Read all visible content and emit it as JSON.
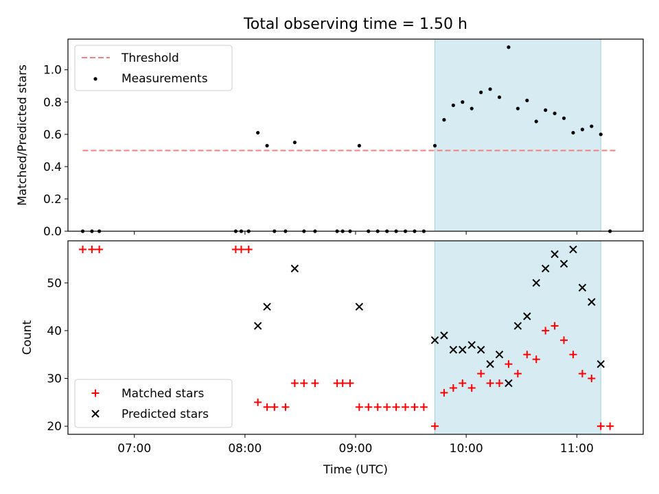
{
  "chart_data": [
    {
      "type": "scatter",
      "title": "Total observing time = 1.50 h",
      "ylabel": "Matched/Predicted stars",
      "xlim": [
        "06:24",
        "11:36"
      ],
      "ylim": [
        0,
        1.19
      ],
      "yticks": [
        0.0,
        0.2,
        0.4,
        0.6,
        0.8,
        1.0
      ],
      "ytick_labels": [
        "0.0",
        "0.2",
        "0.4",
        "0.6",
        "0.8",
        "1.0"
      ],
      "grid": false,
      "legend_position": "top-left",
      "highlight_span": {
        "x": [
          "09:43",
          "11:13"
        ],
        "color": "#add8e6"
      },
      "threshold": {
        "name": "Threshold",
        "value": 0.5,
        "x": [
          "06:32",
          "11:21"
        ],
        "color": "#f47f7f",
        "style": "dashed"
      },
      "series": [
        {
          "name": "Measurements",
          "marker": "dot",
          "color": "#000000",
          "points": [
            [
              "06:32",
              0.0
            ],
            [
              "06:37",
              0.0
            ],
            [
              "06:41",
              0.0
            ],
            [
              "07:55",
              0.0
            ],
            [
              "07:58",
              0.0
            ],
            [
              "08:02",
              0.0
            ],
            [
              "08:07",
              0.61
            ],
            [
              "08:12",
              0.53
            ],
            [
              "08:16",
              0.0
            ],
            [
              "08:22",
              0.0
            ],
            [
              "08:27",
              0.55
            ],
            [
              "08:32",
              0.0
            ],
            [
              "08:38",
              0.0
            ],
            [
              "08:50",
              0.0
            ],
            [
              "08:53",
              0.0
            ],
            [
              "08:57",
              0.0
            ],
            [
              "09:02",
              0.53
            ],
            [
              "09:07",
              0.0
            ],
            [
              "09:12",
              0.0
            ],
            [
              "09:17",
              0.0
            ],
            [
              "09:22",
              0.0
            ],
            [
              "09:27",
              0.0
            ],
            [
              "09:32",
              0.0
            ],
            [
              "09:37",
              0.0
            ],
            [
              "09:43",
              0.53
            ],
            [
              "09:48",
              0.69
            ],
            [
              "09:53",
              0.78
            ],
            [
              "09:58",
              0.8
            ],
            [
              "10:03",
              0.76
            ],
            [
              "10:08",
              0.86
            ],
            [
              "10:13",
              0.88
            ],
            [
              "10:18",
              0.83
            ],
            [
              "10:23",
              1.14
            ],
            [
              "10:28",
              0.76
            ],
            [
              "10:33",
              0.81
            ],
            [
              "10:38",
              0.68
            ],
            [
              "10:43",
              0.75
            ],
            [
              "10:48",
              0.73
            ],
            [
              "10:53",
              0.7
            ],
            [
              "10:58",
              0.61
            ],
            [
              "11:03",
              0.63
            ],
            [
              "11:08",
              0.65
            ],
            [
              "11:13",
              0.6
            ],
            [
              "11:18",
              0.0
            ]
          ]
        }
      ]
    },
    {
      "type": "scatter",
      "xlabel": "Time (UTC)",
      "ylabel": "Count",
      "xlim": [
        "06:24",
        "11:36"
      ],
      "ylim": [
        18.3,
        58.8
      ],
      "yticks": [
        20,
        30,
        40,
        50
      ],
      "ytick_labels": [
        "20",
        "30",
        "40",
        "50"
      ],
      "xticks": [
        "07:00",
        "08:00",
        "09:00",
        "10:00",
        "11:00"
      ],
      "grid": false,
      "legend_position": "bottom-left",
      "highlight_span": {
        "x": [
          "09:43",
          "11:13"
        ],
        "color": "#add8e6"
      },
      "series": [
        {
          "name": "Matched stars",
          "marker": "plus",
          "color": "#ff0000",
          "points": [
            [
              "06:32",
              57
            ],
            [
              "06:37",
              57
            ],
            [
              "06:41",
              57
            ],
            [
              "07:55",
              57
            ],
            [
              "07:58",
              57
            ],
            [
              "08:02",
              57
            ],
            [
              "08:07",
              25
            ],
            [
              "08:12",
              24
            ],
            [
              "08:16",
              24
            ],
            [
              "08:22",
              24
            ],
            [
              "08:27",
              29
            ],
            [
              "08:32",
              29
            ],
            [
              "08:38",
              29
            ],
            [
              "08:50",
              29
            ],
            [
              "08:53",
              29
            ],
            [
              "08:57",
              29
            ],
            [
              "09:02",
              24
            ],
            [
              "09:07",
              24
            ],
            [
              "09:12",
              24
            ],
            [
              "09:17",
              24
            ],
            [
              "09:22",
              24
            ],
            [
              "09:27",
              24
            ],
            [
              "09:32",
              24
            ],
            [
              "09:37",
              24
            ],
            [
              "09:43",
              20
            ],
            [
              "09:48",
              27
            ],
            [
              "09:53",
              28
            ],
            [
              "09:58",
              29
            ],
            [
              "10:03",
              28
            ],
            [
              "10:08",
              31
            ],
            [
              "10:13",
              29
            ],
            [
              "10:18",
              29
            ],
            [
              "10:23",
              33
            ],
            [
              "10:28",
              31
            ],
            [
              "10:33",
              35
            ],
            [
              "10:38",
              34
            ],
            [
              "10:43",
              40
            ],
            [
              "10:48",
              41
            ],
            [
              "10:53",
              38
            ],
            [
              "10:58",
              35
            ],
            [
              "11:03",
              31
            ],
            [
              "11:08",
              30
            ],
            [
              "11:13",
              20
            ],
            [
              "11:18",
              20
            ]
          ]
        },
        {
          "name": "Predicted stars",
          "marker": "x",
          "color": "#000000",
          "points": [
            [
              "08:07",
              41
            ],
            [
              "08:12",
              45
            ],
            [
              "08:27",
              53
            ],
            [
              "09:02",
              45
            ],
            [
              "09:43",
              38
            ],
            [
              "09:48",
              39
            ],
            [
              "09:53",
              36
            ],
            [
              "09:58",
              36
            ],
            [
              "10:03",
              37
            ],
            [
              "10:08",
              36
            ],
            [
              "10:13",
              33
            ],
            [
              "10:18",
              35
            ],
            [
              "10:23",
              29
            ],
            [
              "10:28",
              41
            ],
            [
              "10:33",
              43
            ],
            [
              "10:38",
              50
            ],
            [
              "10:43",
              53
            ],
            [
              "10:48",
              56
            ],
            [
              "10:53",
              54
            ],
            [
              "10:58",
              57
            ],
            [
              "11:03",
              49
            ],
            [
              "11:08",
              46
            ],
            [
              "11:13",
              33
            ]
          ]
        }
      ]
    }
  ]
}
